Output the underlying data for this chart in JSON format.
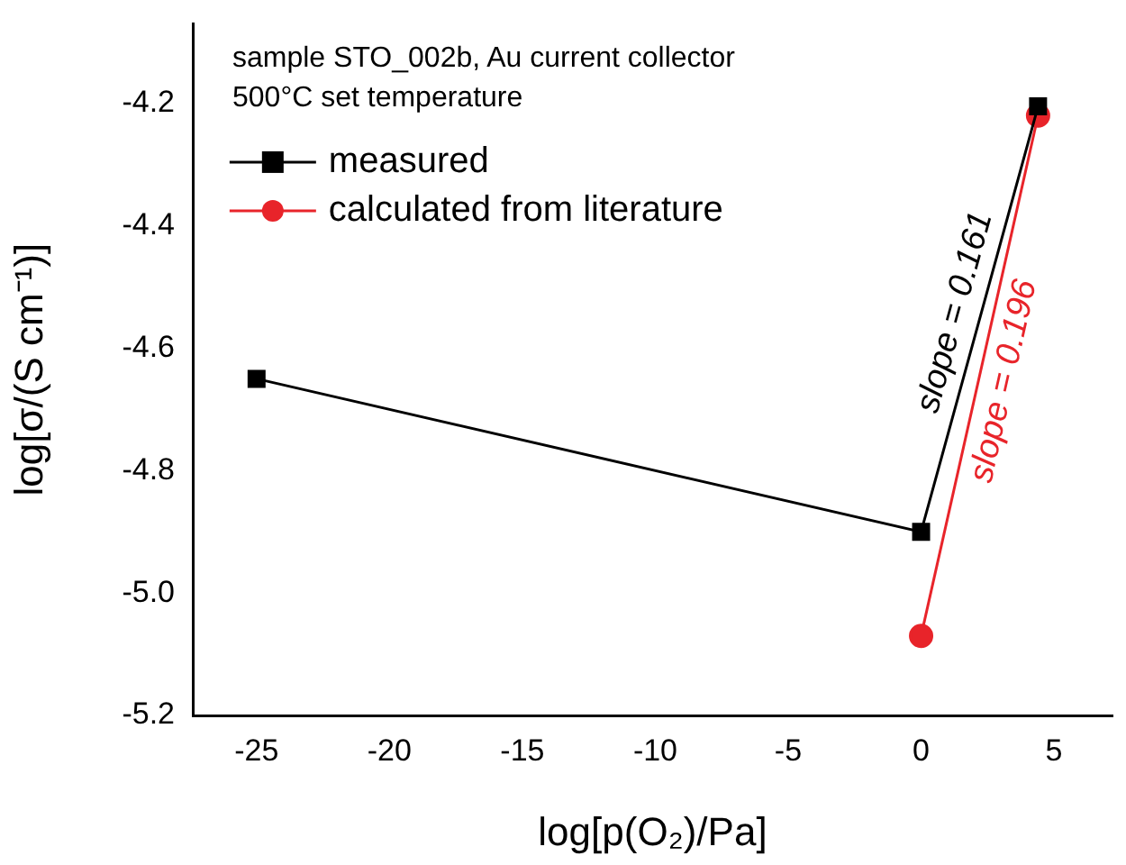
{
  "chart_data": {
    "type": "line",
    "xlabel": "log[p(O₂)/Pa]",
    "ylabel": "log[σ/(S cm⁻¹)]",
    "series": [
      {
        "name": "measured",
        "color": "#000000",
        "x": [
          -25,
          0,
          4.4
        ],
        "values": [
          -4.65,
          -4.9,
          -4.205
        ],
        "marker": "square"
      },
      {
        "name": "calculated from literature",
        "color": "#e8242a",
        "x": [
          0,
          4.4
        ],
        "values": [
          -5.07,
          -4.22
        ],
        "marker": "circle"
      }
    ],
    "xlim": [
      -27.4,
      7.2
    ],
    "xticks": [
      -25,
      -20,
      -15,
      -10,
      -5,
      0,
      5
    ],
    "ylim": [
      -5.2,
      -4.07
    ],
    "yticks": [
      {
        "value": -5.2,
        "label": "-5.2"
      },
      {
        "value": -5,
        "label": "-5.0"
      },
      {
        "value": -4.8,
        "label": "-4.8"
      },
      {
        "value": -4.6,
        "label": "-4.6"
      },
      {
        "value": -4.4,
        "label": "-4.4"
      },
      {
        "value": -4.2,
        "label": "-4.2"
      }
    ],
    "grid": false,
    "legend": "top left",
    "line_style": "solid",
    "annotations": [
      "sample STO_002b, Au current collector",
      "500°C set temperature",
      {
        "text": "slope = 0.161",
        "x": 2.2,
        "y": -4.5525
      },
      {
        "text": "slope = 0.196",
        "x": 2.2,
        "y": -4.645
      }
    ]
  }
}
